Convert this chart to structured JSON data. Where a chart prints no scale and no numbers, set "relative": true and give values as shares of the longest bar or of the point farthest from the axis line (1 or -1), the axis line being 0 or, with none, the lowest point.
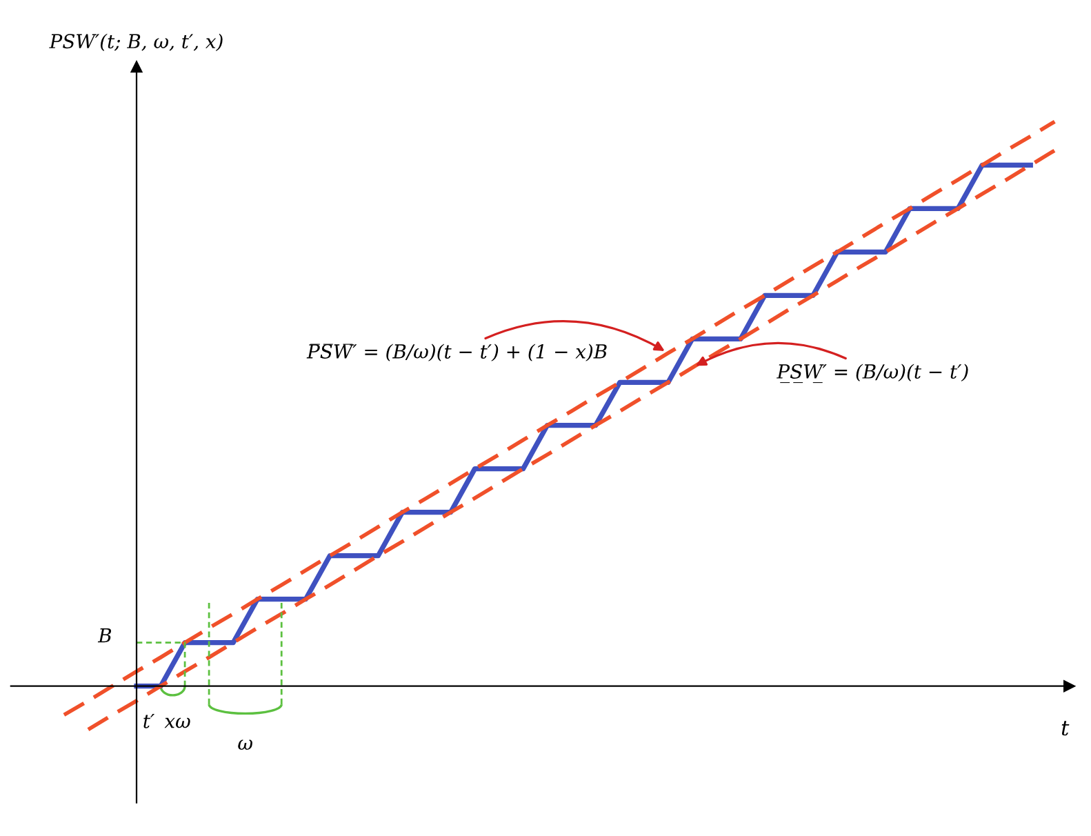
{
  "chart_data": {
    "type": "line",
    "relative": true,
    "xlabel": "t",
    "ylabel": "PSW′(t; B, ω, t′, x)",
    "categories": [
      null,
      null,
      null,
      null,
      null,
      null,
      null,
      null,
      null,
      null,
      null,
      null,
      null,
      null,
      null,
      null,
      null,
      null,
      null,
      null,
      null,
      null,
      null,
      null,
      null,
      null,
      null,
      null,
      null,
      null,
      null,
      null,
      null,
      null,
      null,
      null,
      null,
      null,
      null,
      null,
      null,
      null
    ],
    "series": [
      {
        "color": "#3f51c0",
        "line_style": "solid",
        "values": [
          null,
          null,
          null,
          0,
          0,
          0.077,
          0.077,
          0.077,
          0.154,
          0.154,
          0.154,
          0.231,
          0.231,
          0.231,
          0.308,
          0.308,
          0.308,
          0.385,
          0.385,
          0.385,
          0.462,
          0.462,
          0.462,
          0.538,
          0.538,
          0.538,
          0.615,
          0.615,
          0.615,
          0.692,
          0.692,
          0.692,
          0.769,
          0.769,
          0.769,
          0.846,
          0.846,
          0.846,
          0.923,
          0.923,
          0.923,
          null
        ]
      },
      {
        "color": "#f0502a",
        "line_style": "dashed",
        "values": [
          -0.051,
          -0.026,
          0,
          0.026,
          0.051,
          0.077,
          0.103,
          0.128,
          0.154,
          0.179,
          0.205,
          0.231,
          0.256,
          0.282,
          0.308,
          0.333,
          0.359,
          0.385,
          0.41,
          0.436,
          0.462,
          0.487,
          0.513,
          0.538,
          0.564,
          0.59,
          0.615,
          0.641,
          0.667,
          0.692,
          0.718,
          0.744,
          0.769,
          0.795,
          0.821,
          0.846,
          0.872,
          0.897,
          0.923,
          0.949,
          0.974,
          1.0
        ]
      },
      {
        "color": "#f0502a",
        "line_style": "dashed",
        "values": [
          null,
          -0.077,
          -0.051,
          -0.026,
          0,
          0.026,
          0.051,
          0.077,
          0.103,
          0.128,
          0.154,
          0.179,
          0.205,
          0.231,
          0.256,
          0.282,
          0.308,
          0.333,
          0.359,
          0.385,
          0.41,
          0.436,
          0.462,
          0.487,
          0.513,
          0.538,
          0.564,
          0.59,
          0.615,
          0.641,
          0.667,
          0.692,
          0.718,
          0.744,
          0.769,
          0.795,
          0.821,
          0.846,
          0.872,
          0.897,
          0.923,
          0.949
        ]
      }
    ],
    "annotations": [
      "P̅S̅W̅′ = (B/ω)(t − t′) + (1 − x)B",
      "P̲S̲W̲′ = (B/ω)(t − t′)",
      "B",
      "t′",
      "xω",
      "ω"
    ]
  }
}
